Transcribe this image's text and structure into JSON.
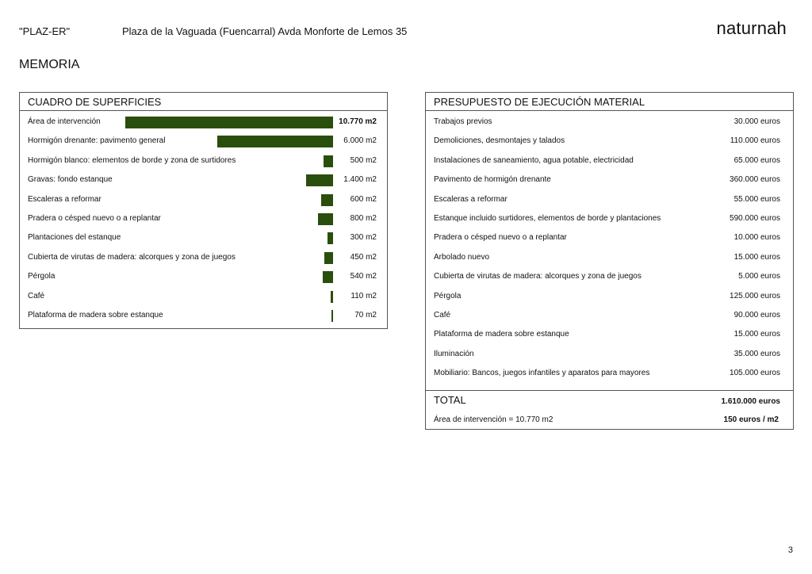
{
  "header": {
    "code": "\"PLAZ-ER\"",
    "address": "Plaza de la Vaguada (Fuencarral) Avda Monforte de Lemos 35",
    "brand": "naturnah"
  },
  "section_title": "MEMORIA",
  "surfaces": {
    "title": "CUADRO DE SUPERFICIES",
    "bar_color": "#2a4e0c",
    "rows": [
      {
        "label": "Área de intervención",
        "value": "10.770 m2",
        "area": 10770
      },
      {
        "label": "Hormigón drenante: pavimento general",
        "value": "6.000 m2",
        "area": 6000
      },
      {
        "label": "Hormigón blanco: elementos de borde y zona de surtidores",
        "value": "500 m2",
        "area": 500
      },
      {
        "label": "Gravas: fondo estanque",
        "value": "1.400 m2",
        "area": 1400
      },
      {
        "label": "Escaleras a reformar",
        "value": "600 m2",
        "area": 600
      },
      {
        "label": "Pradera o césped nuevo o a replantar",
        "value": "800 m2",
        "area": 800
      },
      {
        "label": "Plantaciones del estanque",
        "value": "300 m2",
        "area": 300
      },
      {
        "label": "Cubierta de virutas de madera: alcorques y zona de juegos",
        "value": "450 m2",
        "area": 450
      },
      {
        "label": "Pérgola",
        "value": "540 m2",
        "area": 540
      },
      {
        "label": "Café",
        "value": "110 m2",
        "area": 110
      },
      {
        "label": "Plataforma de madera sobre estanque",
        "value": "70 m2",
        "area": 70
      }
    ]
  },
  "budget": {
    "title": "PRESUPUESTO DE EJECUCIÓN MATERIAL",
    "rows": [
      {
        "label": "Trabajos previos",
        "value": "30.000 euros"
      },
      {
        "label": "Demoliciones, desmontajes y talados",
        "value": "110.000 euros"
      },
      {
        "label": "Instalaciones de saneamiento, agua potable, electricidad",
        "value": "65.000 euros"
      },
      {
        "label": "Pavimento de hormigón drenante",
        "value": "360.000 euros"
      },
      {
        "label": "Escaleras a reformar",
        "value": "55.000 euros"
      },
      {
        "label": "Estanque incluido surtidores, elementos de borde y plantaciones",
        "value": "590.000 euros"
      },
      {
        "label": "Pradera o césped nuevo o a replantar",
        "value": "10.000 euros"
      },
      {
        "label": "Arbolado nuevo",
        "value": "15.000 euros"
      },
      {
        "label": "Cubierta de virutas de madera: alcorques y zona de juegos",
        "value": "5.000 euros"
      },
      {
        "label": "Pérgola",
        "value": "125.000 euros"
      },
      {
        "label": "Café",
        "value": "90.000 euros"
      },
      {
        "label": "Plataforma de madera sobre estanque",
        "value": "15.000 euros"
      },
      {
        "label": "Iluminación",
        "value": "35.000 euros"
      },
      {
        "label": "Mobiliario: Bancos, juegos infantiles y aparatos para mayores",
        "value": "105.000 euros"
      }
    ],
    "total_label": "TOTAL",
    "total_value": "1.610.000 euros",
    "area_label": "Área de intervención = 10.770 m2",
    "area_value": "150 euros / m2"
  },
  "page_number": "3"
}
